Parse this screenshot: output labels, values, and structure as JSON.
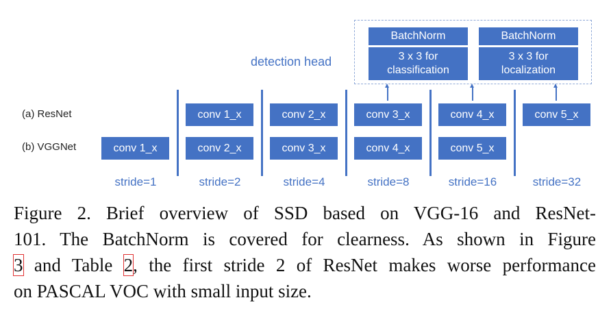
{
  "diagram": {
    "detection_head_label": "detection head",
    "head_blocks": [
      {
        "top": "BatchNorm",
        "bottom_line1": "3 x 3 for",
        "bottom_line2": "classification"
      },
      {
        "top": "BatchNorm",
        "bottom_line1": "3 x 3 for",
        "bottom_line2": "localization"
      }
    ],
    "row_labels": {
      "resnet": "(a)  ResNet",
      "vggnet": "(b)  VGGNet"
    },
    "resnet_blocks": [
      "conv 1_x",
      "conv 2_x",
      "conv 3_x",
      "conv 4_x",
      "conv 5_x"
    ],
    "vggnet_blocks": [
      "conv 1_x",
      "conv 2_x",
      "conv 3_x",
      "conv 4_x",
      "conv 5_x"
    ],
    "strides": [
      "stride=1",
      "stride=2",
      "stride=4",
      "stride=8",
      "stride=16",
      "stride=32"
    ],
    "colors": {
      "block": "#4472c4",
      "dashed_border": "#8fa9d8",
      "ref_box": "#e03030"
    }
  },
  "caption": {
    "line1": "Figure 2. Brief overview of SSD based on VGG-16 and ResNet-",
    "line2": "101. The BatchNorm is covered for clearness. As shown in Figure",
    "line3_ref1": "3",
    "line3_mid": " and Table ",
    "line3_ref2": "2",
    "line3_rest": ", the first stride 2 of ResNet makes worse performance",
    "line4": "on PASCAL VOC with small input size."
  }
}
